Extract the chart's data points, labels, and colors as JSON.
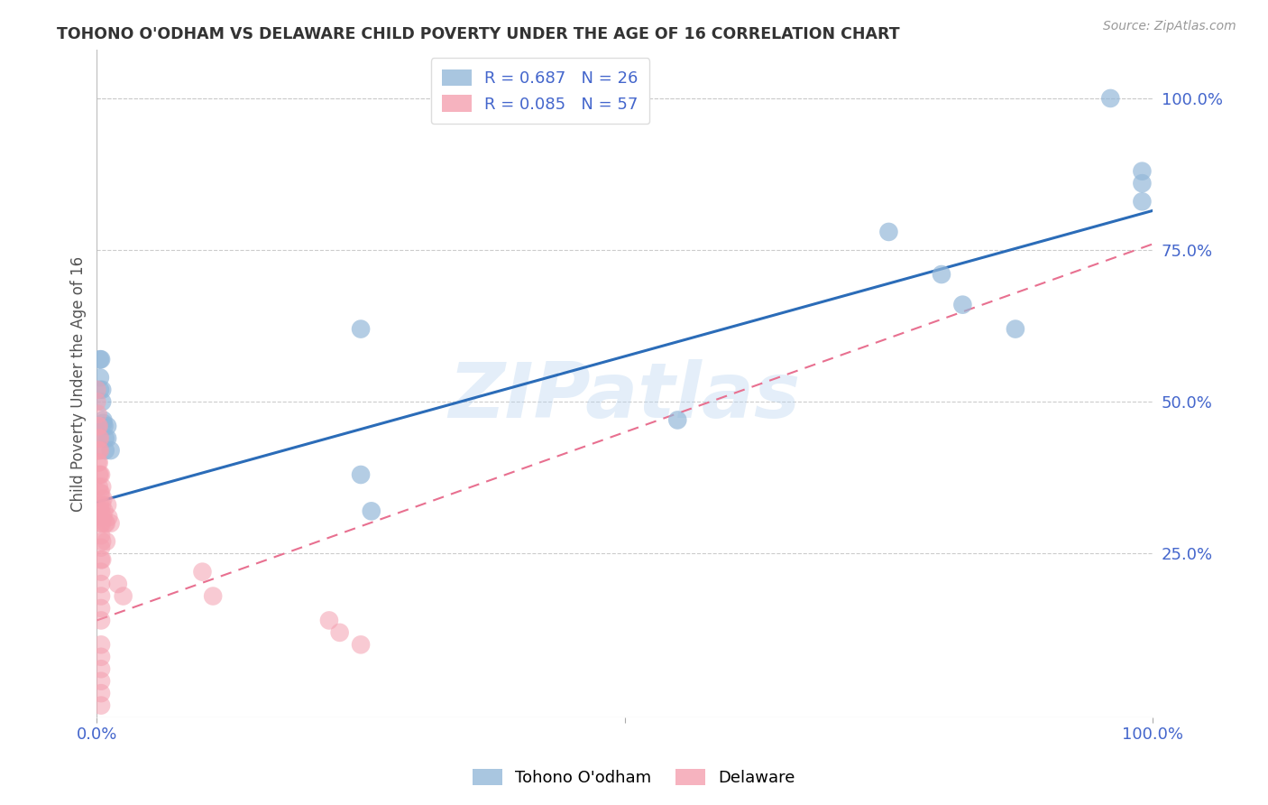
{
  "title": "TOHONO O'ODHAM VS DELAWARE CHILD POVERTY UNDER THE AGE OF 16 CORRELATION CHART",
  "source": "Source: ZipAtlas.com",
  "ylabel": "Child Poverty Under the Age of 16",
  "xlim": [
    0,
    1.0
  ],
  "ylim": [
    -0.02,
    1.08
  ],
  "ytick_labels_right": [
    "25.0%",
    "50.0%",
    "75.0%",
    "100.0%"
  ],
  "ytick_vals_right": [
    0.25,
    0.5,
    0.75,
    1.0
  ],
  "legend_blue_r": "R = 0.687",
  "legend_blue_n": "N = 26",
  "legend_pink_r": "R = 0.085",
  "legend_pink_n": "N = 57",
  "blue_color": "#94B8D9",
  "pink_color": "#F4A0B0",
  "blue_line_color": "#2B6CB8",
  "pink_line_color": "#E87090",
  "watermark_text": "ZIPatlas",
  "background_color": "#FFFFFF",
  "grid_color": "#CCCCCC",
  "tick_label_color": "#4466CC",
  "title_color": "#333333",
  "tohono_points": [
    [
      0.003,
      0.57
    ],
    [
      0.003,
      0.54
    ],
    [
      0.003,
      0.52
    ],
    [
      0.004,
      0.57
    ],
    [
      0.005,
      0.52
    ],
    [
      0.005,
      0.5
    ],
    [
      0.006,
      0.47
    ],
    [
      0.006,
      0.465
    ],
    [
      0.007,
      0.46
    ],
    [
      0.008,
      0.44
    ],
    [
      0.008,
      0.42
    ],
    [
      0.01,
      0.46
    ],
    [
      0.01,
      0.44
    ],
    [
      0.013,
      0.42
    ],
    [
      0.25,
      0.62
    ],
    [
      0.25,
      0.38
    ],
    [
      0.26,
      0.32
    ],
    [
      0.55,
      0.47
    ],
    [
      0.75,
      0.78
    ],
    [
      0.8,
      0.71
    ],
    [
      0.82,
      0.66
    ],
    [
      0.87,
      0.62
    ],
    [
      0.96,
      1.0
    ],
    [
      0.99,
      0.88
    ],
    [
      0.99,
      0.86
    ],
    [
      0.99,
      0.83
    ]
  ],
  "delaware_points": [
    [
      0.0,
      0.52
    ],
    [
      0.0,
      0.5
    ],
    [
      0.001,
      0.48
    ],
    [
      0.001,
      0.46
    ],
    [
      0.001,
      0.42
    ],
    [
      0.001,
      0.4
    ],
    [
      0.002,
      0.46
    ],
    [
      0.002,
      0.44
    ],
    [
      0.002,
      0.42
    ],
    [
      0.002,
      0.4
    ],
    [
      0.002,
      0.38
    ],
    [
      0.002,
      0.36
    ],
    [
      0.003,
      0.44
    ],
    [
      0.003,
      0.42
    ],
    [
      0.003,
      0.38
    ],
    [
      0.003,
      0.35
    ],
    [
      0.003,
      0.33
    ],
    [
      0.003,
      0.31
    ],
    [
      0.004,
      0.38
    ],
    [
      0.004,
      0.35
    ],
    [
      0.004,
      0.32
    ],
    [
      0.004,
      0.3
    ],
    [
      0.004,
      0.28
    ],
    [
      0.004,
      0.26
    ],
    [
      0.004,
      0.24
    ],
    [
      0.004,
      0.22
    ],
    [
      0.004,
      0.2
    ],
    [
      0.004,
      0.18
    ],
    [
      0.004,
      0.16
    ],
    [
      0.004,
      0.14
    ],
    [
      0.004,
      0.1
    ],
    [
      0.004,
      0.08
    ],
    [
      0.004,
      0.06
    ],
    [
      0.004,
      0.04
    ],
    [
      0.004,
      0.02
    ],
    [
      0.004,
      0.0
    ],
    [
      0.005,
      0.36
    ],
    [
      0.005,
      0.33
    ],
    [
      0.005,
      0.3
    ],
    [
      0.005,
      0.27
    ],
    [
      0.005,
      0.24
    ],
    [
      0.006,
      0.34
    ],
    [
      0.006,
      0.31
    ],
    [
      0.007,
      0.32
    ],
    [
      0.008,
      0.3
    ],
    [
      0.009,
      0.3
    ],
    [
      0.009,
      0.27
    ],
    [
      0.01,
      0.33
    ],
    [
      0.011,
      0.31
    ],
    [
      0.013,
      0.3
    ],
    [
      0.02,
      0.2
    ],
    [
      0.025,
      0.18
    ],
    [
      0.1,
      0.22
    ],
    [
      0.11,
      0.18
    ],
    [
      0.22,
      0.14
    ],
    [
      0.23,
      0.12
    ],
    [
      0.25,
      0.1
    ]
  ],
  "blue_line_x": [
    0.0,
    1.0
  ],
  "blue_line_y_start": 0.335,
  "blue_line_y_end": 0.815,
  "pink_line_x": [
    0.0,
    1.0
  ],
  "pink_line_y_start": 0.14,
  "pink_line_y_end": 0.76
}
